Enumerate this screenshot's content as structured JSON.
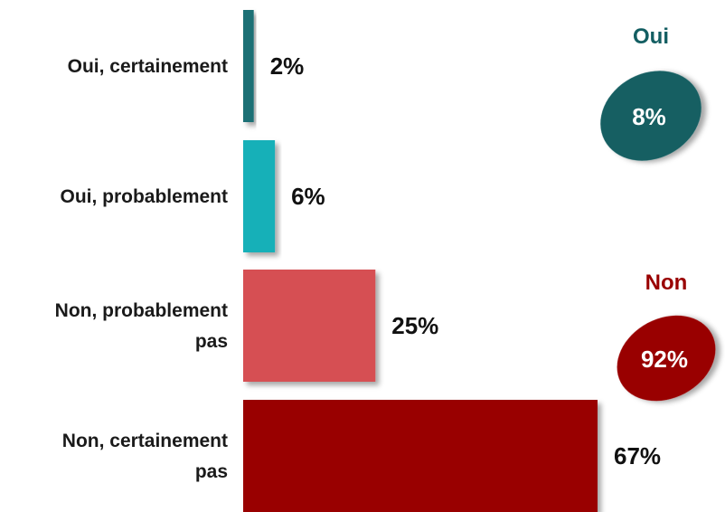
{
  "chart_data": {
    "type": "bar",
    "orientation": "horizontal",
    "categories": [
      [
        "Oui, certainement"
      ],
      [
        "Oui, probablement"
      ],
      [
        "Non, probablement",
        "pas"
      ],
      [
        "Non, certainement",
        "pas"
      ]
    ],
    "values": [
      2,
      6,
      25,
      67
    ],
    "value_labels": [
      "2%",
      "6%",
      "25%",
      "67%"
    ],
    "colors": [
      "#1a6f74",
      "#17b0b8",
      "#d64f52",
      "#990000"
    ],
    "xlim": [
      0,
      67
    ],
    "grid": false,
    "title": "",
    "xlabel": "",
    "ylabel": "",
    "summary": [
      {
        "label": "Oui",
        "value": "8%",
        "color": "#135e62",
        "label_color": "#135e62"
      },
      {
        "label": "Non",
        "value": "92%",
        "color": "#990000",
        "label_color": "#990000"
      }
    ]
  }
}
